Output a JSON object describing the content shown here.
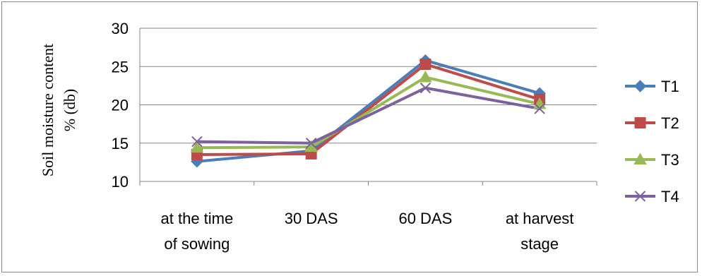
{
  "chart_data": {
    "type": "line",
    "categories": [
      [
        "at the time",
        "of sowing"
      ],
      [
        "30 DAS"
      ],
      [
        "60 DAS"
      ],
      [
        "at harvest",
        "stage"
      ]
    ],
    "ylabel": [
      "Soil moisture content",
      "% (db)"
    ],
    "ylim": [
      10,
      30
    ],
    "yticks": [
      10,
      15,
      20,
      25,
      30
    ],
    "grid": true,
    "legend_position": "right",
    "series": [
      {
        "name": "T1",
        "values": [
          12.6,
          14.0,
          25.8,
          21.5
        ],
        "color": "#4a7ebb",
        "marker": "diamond"
      },
      {
        "name": "T2",
        "values": [
          13.5,
          13.6,
          25.3,
          20.7
        ],
        "color": "#be4b48",
        "marker": "square"
      },
      {
        "name": "T3",
        "values": [
          14.4,
          14.5,
          23.6,
          20.1
        ],
        "color": "#98b954",
        "marker": "triangle"
      },
      {
        "name": "T4",
        "values": [
          15.2,
          15.0,
          22.2,
          19.5
        ],
        "color": "#7d60a0",
        "marker": "x"
      }
    ]
  }
}
